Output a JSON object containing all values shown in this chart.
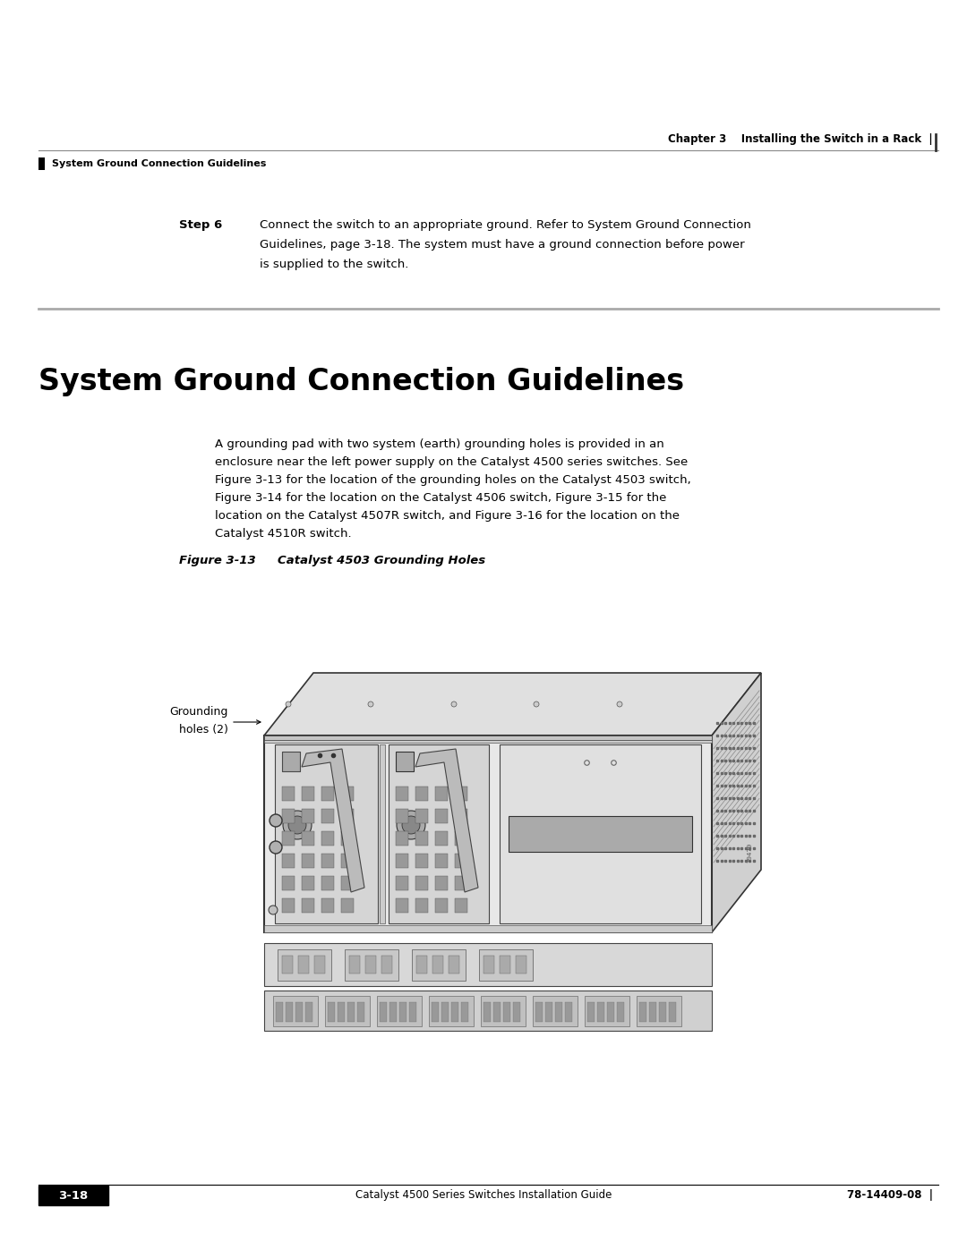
{
  "page_width": 10.8,
  "page_height": 13.97,
  "bg_color": "#ffffff",
  "header_right_text": "Chapter 3    Installing the Switch in a Rack  |",
  "header_left_text": "■   System Ground Connection Guidelines",
  "step_label": "Step 6",
  "step_text_line1": "Connect the switch to an appropriate ground. Refer to System Ground Connection",
  "step_text_line2": "Guidelines, page 3-18. The system must have a ground connection before power",
  "step_text_line3": "is supplied to the switch.",
  "section_title": "System Ground Connection Guidelines",
  "body_para_line1": "A grounding pad with two system (earth) grounding holes is provided in an",
  "body_para_line2": "enclosure near the left power supply on the Catalyst 4500 series switches. See",
  "body_para_line3": "Figure 3-13 for the location of the grounding holes on the Catalyst 4503 switch,",
  "body_para_line4": "Figure 3-14 for the location on the Catalyst 4506 switch, Figure 3-15 for the",
  "body_para_line5": "location on the Catalyst 4507R switch, and Figure 3-16 for the location on the",
  "body_para_line6": "Catalyst 4510R switch.",
  "figure_caption_bold": "Figure 3-13",
  "figure_caption_italic": "      Catalyst 4503 Grounding Holes",
  "grounding_label_line1": "Grounding",
  "grounding_label_line2": "holes (2)",
  "footer_left_label": "3-18",
  "footer_center_text": "Catalyst 4500 Series Switches Installation Guide",
  "footer_right_text": "78-14409-08  |"
}
